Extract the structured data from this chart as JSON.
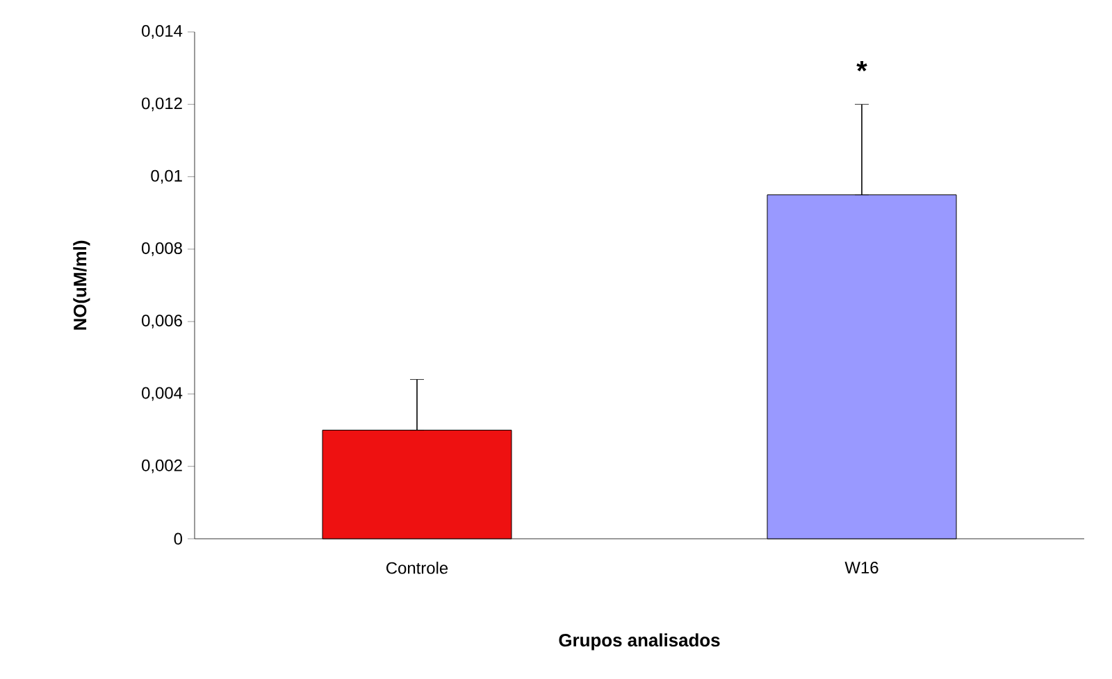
{
  "chart_data": {
    "type": "bar",
    "categories": [
      "Controle",
      "W16"
    ],
    "values": [
      0.003,
      0.0095
    ],
    "colors": [
      "#ee1111",
      "#9999ff"
    ],
    "errors": [
      [
        0.003,
        0.0044
      ],
      [
        0.0095,
        0.012
      ]
    ],
    "ylim": [
      0,
      0.014
    ],
    "yticks": [
      0,
      {
        "value": 0.002,
        "label": "0,002"
      },
      {
        "value": 0.004,
        "label": "0,004"
      },
      {
        "value": 0.006,
        "label": "0,006"
      },
      {
        "value": 0.008,
        "label": "0,008"
      },
      {
        "value": 0.01,
        "label": "0,01"
      },
      {
        "value": 0.012,
        "label": "0,012"
      },
      {
        "value": 0.014,
        "label": "0,014"
      }
    ],
    "xlabel": "Grupos  analisados",
    "ylabel": "NO(uM/ml)",
    "annotations": [
      "*"
    ]
  }
}
